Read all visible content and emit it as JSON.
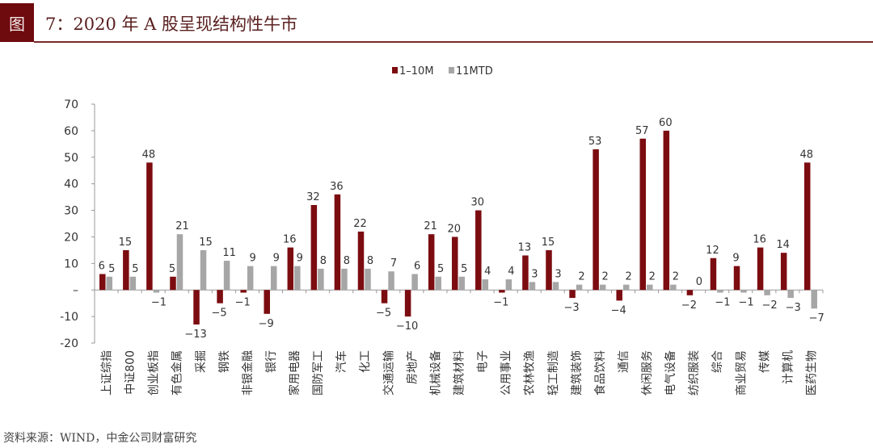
{
  "figure": {
    "tag": "图",
    "title": "7：2020 年 A 股呈现结构性牛市",
    "source": "资料来源：WIND，中金公司财富研究"
  },
  "chart_data": {
    "type": "bar",
    "title": "",
    "xlabel": "",
    "ylabel": "",
    "ylim": [
      -20,
      70
    ],
    "yticks": [
      -20,
      -10,
      0,
      10,
      20,
      30,
      40,
      50,
      60,
      70
    ],
    "ytick_labels": [
      "-20",
      "-10",
      "–",
      "10",
      "20",
      "30",
      "40",
      "50",
      "60",
      "70"
    ],
    "grid": false,
    "legend_position": "top-right",
    "categories": [
      "上证综指",
      "中证800",
      "创业板指",
      "有色金属",
      "采掘",
      "钢铁",
      "非银金融",
      "银行",
      "家用电器",
      "国防军工",
      "汽车",
      "化工",
      "交通运输",
      "房地产",
      "机械设备",
      "建筑材料",
      "电子",
      "公用事业",
      "农林牧渔",
      "轻工制造",
      "建筑装饰",
      "食品饮料",
      "通信",
      "休闲服务",
      "电气设备",
      "纺织服装",
      "综合",
      "商业贸易",
      "传媒",
      "计算机",
      "医药生物"
    ],
    "series": [
      {
        "name": "1–10M",
        "color": "#7b0c10",
        "values": [
          6,
          15,
          48,
          5,
          -13,
          -5,
          -1,
          -9,
          16,
          32,
          36,
          22,
          -5,
          -10,
          21,
          20,
          30,
          -1,
          13,
          15,
          -3,
          53,
          -4,
          57,
          60,
          -2,
          12,
          9,
          16,
          14,
          48
        ]
      },
      {
        "name": "11MTD",
        "color": "#a6a6a6",
        "values": [
          5,
          5,
          -1,
          21,
          15,
          11,
          9,
          9,
          9,
          8,
          8,
          8,
          7,
          6,
          5,
          5,
          4,
          4,
          3,
          3,
          2,
          2,
          2,
          2,
          2,
          0,
          -1,
          -1,
          -2,
          -3,
          -7
        ]
      }
    ],
    "data_labels": true
  }
}
